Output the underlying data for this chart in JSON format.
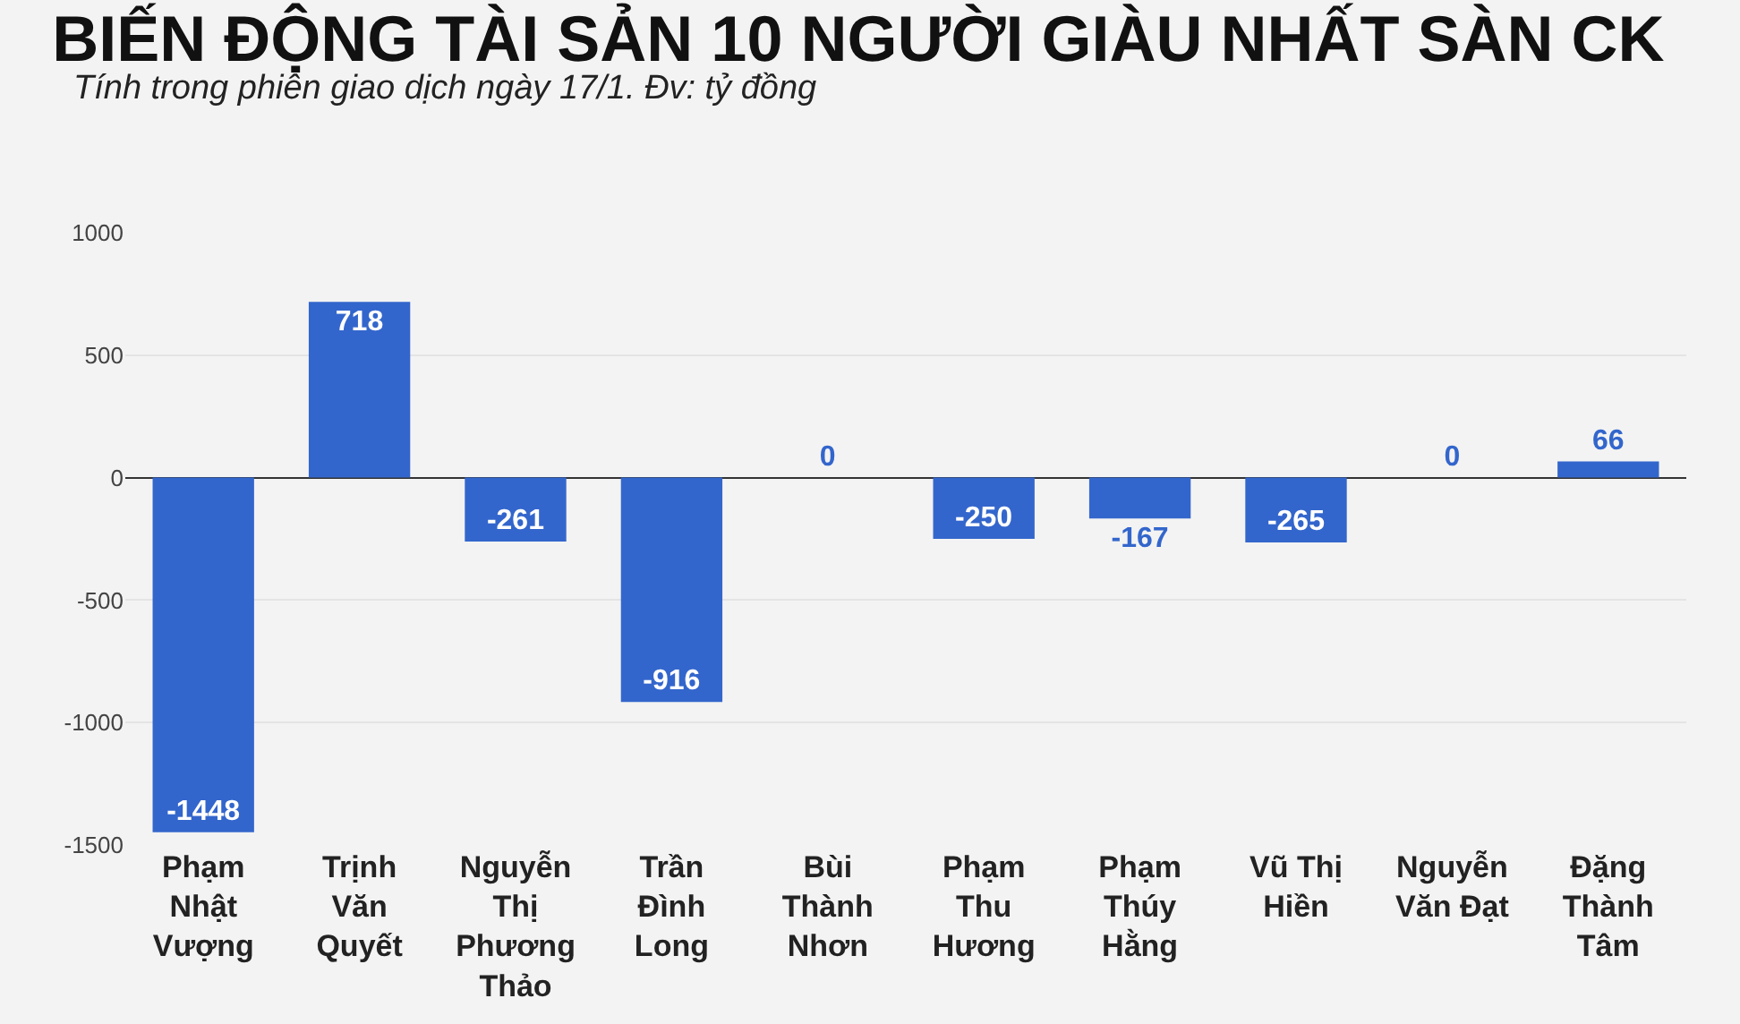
{
  "chart_data": {
    "type": "bar",
    "title": "BIẾN ĐỘNG TÀI SẢN 10 NGƯỜI GIÀU NHẤT SÀN CK",
    "subtitle": "Tính trong phiên giao dịch ngày 17/1. Đv: tỷ đồng",
    "categories": [
      "Phạm Nhật Vượng",
      "Trịnh Văn Quyết",
      "Nguyễn Thị Phương Thảo",
      "Trần Đình Long",
      "Bùi Thành Nhơn",
      "Phạm Thu Hương",
      "Phạm Thúy Hằng",
      "Vũ Thị Hiền",
      "Nguyễn Văn Đạt",
      "Đặng Thành Tâm"
    ],
    "values": [
      -1448,
      718,
      -261,
      -916,
      0,
      -250,
      -167,
      -265,
      0,
      66
    ],
    "color": "#3366cc",
    "ylim": [
      -1500,
      1000
    ],
    "yticks": [
      1000,
      500,
      0,
      -500,
      -1000,
      -1500
    ],
    "grid": "y",
    "data_labels": true
  }
}
